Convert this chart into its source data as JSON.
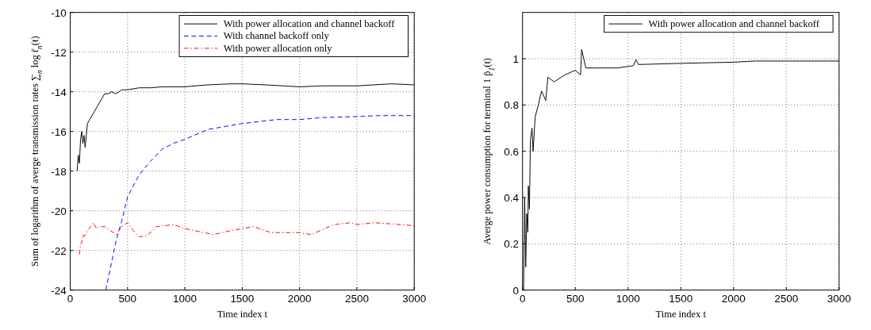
{
  "chart_data": [
    {
      "type": "line",
      "xlabel": "Time index t",
      "ylabel": "Sum of logarithm of averge transmission rates ∑$_{n}$ log r̄$_{n}$(t)",
      "xlim": [
        0,
        3000
      ],
      "ylim": [
        -24,
        -10
      ],
      "xticks": [
        0,
        500,
        1000,
        1500,
        2000,
        2500,
        3000
      ],
      "yticks": [
        -24,
        -22,
        -20,
        -18,
        -16,
        -14,
        -12,
        -10
      ],
      "grid": true,
      "legend": "top right",
      "series": [
        {
          "name": "With power allocation and channel backoff",
          "color": "#000000",
          "line_style": "solid",
          "x": [
            60,
            70,
            80,
            90,
            100,
            110,
            120,
            130,
            150,
            170,
            200,
            230,
            250,
            280,
            300,
            330,
            360,
            400,
            450,
            500,
            600,
            700,
            800,
            1000,
            1200,
            1400,
            1500,
            1700,
            2000,
            2200,
            2500,
            2800,
            3000
          ],
          "values": [
            -18,
            -17.2,
            -17.6,
            -16.4,
            -16,
            -16.6,
            -16.2,
            -16.8,
            -15.6,
            -15.4,
            -15.1,
            -14.8,
            -14.6,
            -14.3,
            -14.1,
            -14.1,
            -14,
            -14.1,
            -13.9,
            -13.9,
            -13.8,
            -13.8,
            -13.75,
            -13.75,
            -13.65,
            -13.6,
            -13.6,
            -13.65,
            -13.75,
            -13.7,
            -13.7,
            -13.6,
            -13.65
          ]
        },
        {
          "name": "With channel backoff only",
          "color": "#0000ff",
          "line_style": "dashed",
          "x": [
            310,
            350,
            400,
            450,
            500,
            600,
            700,
            800,
            900,
            1000,
            1200,
            1500,
            1800,
            2000,
            2200,
            2500,
            2700,
            3000
          ],
          "values": [
            -24,
            -22.9,
            -21.5,
            -20.5,
            -19.3,
            -18.2,
            -17.5,
            -16.9,
            -16.6,
            -16.4,
            -15.9,
            -15.6,
            -15.4,
            -15.4,
            -15.3,
            -15.25,
            -15.2,
            -15.2
          ]
        },
        {
          "name": "With power allocation only",
          "color": "#ff0000",
          "line_style": "dashdot",
          "x": [
            80,
            90,
            100,
            110,
            120,
            150,
            180,
            200,
            230,
            250,
            300,
            350,
            400,
            450,
            500,
            550,
            600,
            650,
            700,
            750,
            900,
            1000,
            1250,
            1400,
            1500,
            1600,
            1750,
            2000,
            2100,
            2300,
            2450,
            2500,
            2650,
            3000
          ],
          "values": [
            -22.2,
            -21.7,
            -21.6,
            -21.2,
            -21.3,
            -21,
            -20.8,
            -20.6,
            -20.9,
            -20.8,
            -20.8,
            -21,
            -21.2,
            -20.8,
            -20.6,
            -21,
            -21.3,
            -21.3,
            -21.1,
            -20.8,
            -20.7,
            -20.9,
            -21.2,
            -21,
            -20.9,
            -20.8,
            -21.1,
            -21.1,
            -21.2,
            -20.7,
            -20.6,
            -20.7,
            -20.6,
            -20.75
          ]
        }
      ]
    },
    {
      "type": "line",
      "xlabel": "Time index t",
      "ylabel": "Averge power consumption for terminal 1 p̄$_{1}$(t)",
      "xlim": [
        0,
        3000
      ],
      "ylim": [
        0,
        1.2
      ],
      "xticks": [
        0,
        500,
        1000,
        1500,
        2000,
        2500,
        3000
      ],
      "yticks": [
        0,
        0.2,
        0.4,
        0.6,
        0.8,
        1
      ],
      "grid": true,
      "legend": "top right",
      "series": [
        {
          "name": "With power allocation and channel backoff",
          "color": "#000000",
          "line_style": "solid",
          "x": [
            10,
            20,
            30,
            40,
            50,
            55,
            65,
            75,
            90,
            100,
            120,
            150,
            180,
            220,
            240,
            300,
            400,
            500,
            550,
            560,
            600,
            700,
            900,
            1050,
            1075,
            1100,
            1500,
            2000,
            2200,
            2500,
            3000
          ],
          "values": [
            0,
            0.4,
            0.1,
            0.33,
            0.25,
            0.45,
            0.35,
            0.65,
            0.7,
            0.6,
            0.75,
            0.8,
            0.86,
            0.82,
            0.92,
            0.9,
            0.93,
            0.95,
            0.93,
            1.04,
            0.96,
            0.96,
            0.96,
            0.97,
            0.995,
            0.975,
            0.98,
            0.985,
            0.99,
            0.99,
            0.99
          ]
        }
      ]
    }
  ]
}
